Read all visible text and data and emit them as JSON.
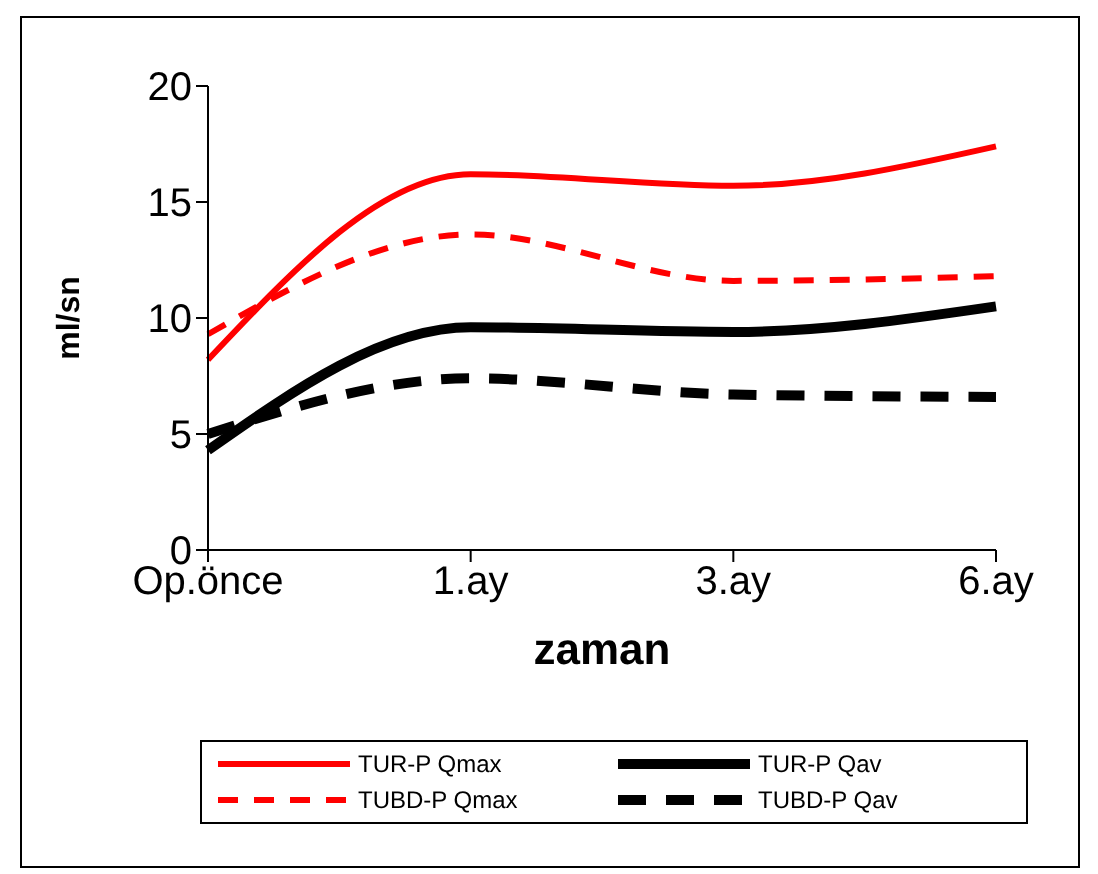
{
  "chart_data": {
    "type": "line",
    "xlabel": "zaman",
    "ylabel": "ml/sn",
    "categories": [
      "Op.önce",
      "1.ay",
      "3.ay",
      "6.ay"
    ],
    "series": [
      {
        "name": "TUR-P Qmax",
        "color": "#ff0000",
        "line_style": "solid",
        "values": [
          8.2,
          16.2,
          15.7,
          17.4
        ]
      },
      {
        "name": "TUR-P Qav",
        "color": "#000000",
        "line_style": "solid",
        "values": [
          4.3,
          9.6,
          9.4,
          10.5
        ]
      },
      {
        "name": "TUBD-P Qmax",
        "color": "#ff0000",
        "line_style": "dashed",
        "values": [
          9.3,
          13.6,
          11.6,
          11.8
        ]
      },
      {
        "name": "TUBD-P Qav",
        "color": "#000000",
        "line_style": "dashed",
        "values": [
          5.0,
          7.4,
          6.7,
          6.6
        ]
      }
    ],
    "ylim": [
      0,
      20
    ],
    "yticks": [
      0,
      5,
      10,
      15,
      20
    ],
    "grid": false,
    "legend": "bottom",
    "marker": "none"
  }
}
